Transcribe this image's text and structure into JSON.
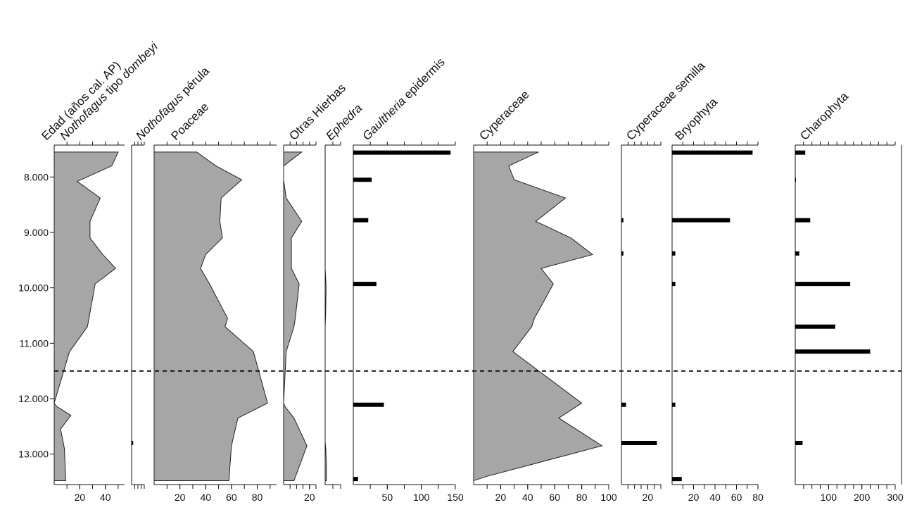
{
  "chart_data": {
    "type": "area",
    "y_axis": {
      "label": "Edad (años cal. AP)",
      "ylim": [
        7450,
        13550
      ],
      "ticks": [
        8000,
        9000,
        10000,
        11000,
        12000,
        13000
      ],
      "tick_labels": [
        "8.000",
        "9.000",
        "10.000",
        "11.000",
        "12.000",
        "13.000"
      ],
      "reversed": true
    },
    "zone_boundary": 11500,
    "panels": [
      {
        "name": "Nothofagus tipo dombeyi",
        "italic_part": "Nothofagus",
        "plain_part": " tipo ",
        "italic_part2": "dombeyi",
        "style": "area",
        "xlim": [
          0,
          55
        ],
        "x_ticks": [
          20,
          40
        ],
        "points": [
          [
            7550,
            50
          ],
          [
            7800,
            45
          ],
          [
            8080,
            18
          ],
          [
            8380,
            36
          ],
          [
            8800,
            28
          ],
          [
            9100,
            28
          ],
          [
            9400,
            38
          ],
          [
            9650,
            48
          ],
          [
            9930,
            32
          ],
          [
            10700,
            26
          ],
          [
            11150,
            12
          ],
          [
            12080,
            0
          ],
          [
            12140,
            2
          ],
          [
            12300,
            13
          ],
          [
            12550,
            5
          ],
          [
            12900,
            8
          ],
          [
            13480,
            9
          ]
        ]
      },
      {
        "name": "Nothofagus pérula",
        "italic_part": "Nothofagus",
        "plain_part": " pérula",
        "style": "bar",
        "xlim": [
          0,
          20
        ],
        "x_ticks": [],
        "bar_height": 6,
        "bars": [
          [
            12800,
            2.5
          ]
        ]
      },
      {
        "name": "Poaceae",
        "style": "area",
        "xlim": [
          0,
          95
        ],
        "x_ticks": [
          20,
          40,
          60,
          80
        ],
        "points": [
          [
            7550,
            33
          ],
          [
            7800,
            48
          ],
          [
            8050,
            68
          ],
          [
            8380,
            52
          ],
          [
            8800,
            51
          ],
          [
            9100,
            53
          ],
          [
            9400,
            40
          ],
          [
            9650,
            36
          ],
          [
            9930,
            43
          ],
          [
            10550,
            57
          ],
          [
            10700,
            55
          ],
          [
            11150,
            77
          ],
          [
            12080,
            88
          ],
          [
            12350,
            65
          ],
          [
            12850,
            60
          ],
          [
            13480,
            58
          ]
        ]
      },
      {
        "name": "Otras Hierbas",
        "style": "area",
        "xlim": [
          0,
          25
        ],
        "x_ticks": [
          20
        ],
        "points": [
          [
            7550,
            14
          ],
          [
            7800,
            0
          ],
          [
            8050,
            0
          ],
          [
            8380,
            2
          ],
          [
            8800,
            14
          ],
          [
            9100,
            6
          ],
          [
            9400,
            6
          ],
          [
            9650,
            6
          ],
          [
            9930,
            12
          ],
          [
            10550,
            9
          ],
          [
            10700,
            8
          ],
          [
            11150,
            2
          ],
          [
            12080,
            0
          ],
          [
            12140,
            1
          ],
          [
            12350,
            8
          ],
          [
            12850,
            18
          ],
          [
            13480,
            8
          ]
        ]
      },
      {
        "name": "Ephedra",
        "italic_part": "Ephedra",
        "style": "area",
        "xlim": [
          0,
          10
        ],
        "x_ticks": [],
        "points": [
          [
            9650,
            0
          ],
          [
            9800,
            0.3
          ],
          [
            10000,
            0.6
          ],
          [
            10500,
            0.3
          ],
          [
            10700,
            0
          ],
          [
            12780,
            0
          ],
          [
            12900,
            0.4
          ],
          [
            13200,
            0.8
          ],
          [
            13480,
            0.8
          ]
        ]
      },
      {
        "name": "Gaultheria epidermis",
        "italic_part": "Gaultheria",
        "plain_part": " epidermis",
        "style": "bar",
        "xlim": [
          0,
          150
        ],
        "x_ticks": [
          50,
          100,
          150
        ],
        "bar_height": 6,
        "bars": [
          [
            7560,
            143
          ],
          [
            8050,
            27
          ],
          [
            8780,
            22
          ],
          [
            9930,
            34
          ],
          [
            12110,
            45
          ],
          [
            13450,
            7
          ]
        ]
      },
      {
        "name": "Cyperaceae",
        "style": "area",
        "xlim": [
          0,
          100
        ],
        "x_ticks": [
          20,
          40,
          60,
          80,
          100
        ],
        "points": [
          [
            7550,
            48
          ],
          [
            7800,
            26
          ],
          [
            8050,
            30
          ],
          [
            8380,
            68
          ],
          [
            8800,
            46
          ],
          [
            9100,
            72
          ],
          [
            9400,
            88
          ],
          [
            9650,
            50
          ],
          [
            9930,
            59
          ],
          [
            10550,
            45
          ],
          [
            10700,
            43
          ],
          [
            11150,
            29
          ],
          [
            12080,
            80
          ],
          [
            12350,
            63
          ],
          [
            12850,
            95
          ],
          [
            13400,
            10
          ],
          [
            13480,
            0
          ]
        ]
      },
      {
        "name": "Cyperaceae semilla",
        "style": "bar",
        "xlim": [
          0,
          30
        ],
        "x_ticks": [
          20
        ],
        "bar_height": 6,
        "bars": [
          [
            8780,
            1.5
          ],
          [
            9380,
            1.5
          ],
          [
            12110,
            3.5
          ],
          [
            12800,
            27
          ]
        ]
      },
      {
        "name": "Bryophyta",
        "style": "bar",
        "xlim": [
          0,
          80
        ],
        "x_ticks": [
          20,
          40,
          60,
          80
        ],
        "bar_height": 6,
        "bars": [
          [
            7560,
            75
          ],
          [
            8780,
            54
          ],
          [
            9380,
            3
          ],
          [
            9930,
            3
          ],
          [
            12110,
            3
          ],
          [
            13450,
            9
          ]
        ]
      },
      {
        "name": "Charophyta",
        "style": "bar",
        "xlim": [
          0,
          300
        ],
        "x_ticks": [
          100,
          200,
          300
        ],
        "bar_height": 6,
        "bars": [
          [
            7560,
            30
          ],
          [
            8050,
            2
          ],
          [
            8780,
            45
          ],
          [
            9380,
            12
          ],
          [
            9930,
            165
          ],
          [
            10700,
            120
          ],
          [
            11150,
            225
          ],
          [
            12800,
            22
          ]
        ]
      }
    ]
  }
}
